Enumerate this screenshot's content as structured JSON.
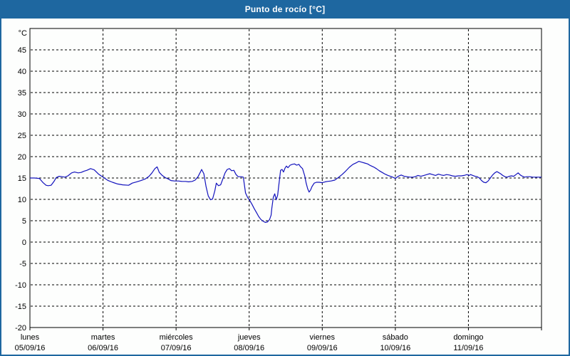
{
  "window": {
    "title": "Punto de rocío [°C]"
  },
  "colors": {
    "titlebar": "#1e67a0",
    "window_border": "#1e67a0",
    "plot_background": "#fdfefd",
    "frame": "#000000",
    "grid": "#000000",
    "text": "#000000",
    "series_line": "#1212bd"
  },
  "chart_data": {
    "type": "line",
    "title": "Punto de rocío [°C]",
    "y_unit_label": "°C",
    "ylabel": "",
    "xlabel": "",
    "ylim": [
      -20,
      50
    ],
    "y_ticks": [
      45,
      40,
      35,
      30,
      25,
      20,
      15,
      10,
      5,
      0,
      -5,
      -10,
      -15,
      -20
    ],
    "xlim_days": [
      0,
      7
    ],
    "grid": "dashed",
    "legend": "none",
    "x_day_labels": [
      {
        "day": "lunes",
        "date": "05/09/16"
      },
      {
        "day": "martes",
        "date": "06/09/16"
      },
      {
        "day": "miércoles",
        "date": "07/09/16"
      },
      {
        "day": "jueves",
        "date": "08/09/16"
      },
      {
        "day": "viernes",
        "date": "09/09/16"
      },
      {
        "day": "sábado",
        "date": "10/09/16"
      },
      {
        "day": "domingo",
        "date": "11/09/16"
      }
    ],
    "series": [
      {
        "name": "Punto de rocío",
        "color": "#1212bd",
        "points": [
          [
            0.0,
            15.0
          ],
          [
            0.06,
            15.0
          ],
          [
            0.13,
            14.9
          ],
          [
            0.18,
            13.9
          ],
          [
            0.22,
            13.3
          ],
          [
            0.25,
            13.2
          ],
          [
            0.29,
            13.3
          ],
          [
            0.33,
            14.2
          ],
          [
            0.36,
            15.1
          ],
          [
            0.4,
            15.4
          ],
          [
            0.44,
            15.3
          ],
          [
            0.48,
            15.2
          ],
          [
            0.52,
            15.5
          ],
          [
            0.57,
            16.2
          ],
          [
            0.61,
            16.4
          ],
          [
            0.66,
            16.2
          ],
          [
            0.7,
            16.3
          ],
          [
            0.74,
            16.6
          ],
          [
            0.78,
            16.8
          ],
          [
            0.83,
            17.2
          ],
          [
            0.88,
            16.9
          ],
          [
            0.94,
            15.9
          ],
          [
            1.0,
            15.2
          ],
          [
            1.07,
            14.4
          ],
          [
            1.13,
            14.0
          ],
          [
            1.2,
            13.6
          ],
          [
            1.27,
            13.4
          ],
          [
            1.35,
            13.3
          ],
          [
            1.4,
            13.8
          ],
          [
            1.46,
            14.1
          ],
          [
            1.52,
            14.4
          ],
          [
            1.58,
            14.8
          ],
          [
            1.63,
            15.4
          ],
          [
            1.67,
            16.2
          ],
          [
            1.71,
            17.2
          ],
          [
            1.74,
            17.6
          ],
          [
            1.77,
            16.3
          ],
          [
            1.81,
            15.6
          ],
          [
            1.85,
            15.1
          ],
          [
            1.89,
            14.8
          ],
          [
            1.93,
            14.4
          ],
          [
            1.98,
            14.3
          ],
          [
            2.03,
            14.3
          ],
          [
            2.08,
            14.2
          ],
          [
            2.13,
            14.2
          ],
          [
            2.17,
            14.1
          ],
          [
            2.22,
            14.2
          ],
          [
            2.26,
            14.5
          ],
          [
            2.3,
            15.3
          ],
          [
            2.33,
            16.3
          ],
          [
            2.35,
            17.0
          ],
          [
            2.38,
            16.0
          ],
          [
            2.41,
            13.0
          ],
          [
            2.44,
            10.8
          ],
          [
            2.47,
            9.9
          ],
          [
            2.5,
            10.1
          ],
          [
            2.53,
            12.0
          ],
          [
            2.55,
            13.8
          ],
          [
            2.58,
            13.2
          ],
          [
            2.61,
            13.4
          ],
          [
            2.64,
            14.8
          ],
          [
            2.67,
            16.2
          ],
          [
            2.7,
            17.0
          ],
          [
            2.73,
            17.2
          ],
          [
            2.76,
            16.7
          ],
          [
            2.79,
            16.8
          ],
          [
            2.82,
            15.8
          ],
          [
            2.85,
            15.3
          ],
          [
            2.89,
            15.3
          ],
          [
            2.92,
            15.2
          ],
          [
            2.95,
            11.5
          ],
          [
            2.98,
            10.4
          ],
          [
            3.01,
            9.7
          ],
          [
            3.04,
            8.8
          ],
          [
            3.07,
            7.8
          ],
          [
            3.1,
            6.9
          ],
          [
            3.13,
            6.0
          ],
          [
            3.16,
            5.3
          ],
          [
            3.19,
            4.9
          ],
          [
            3.22,
            4.6
          ],
          [
            3.25,
            4.7
          ],
          [
            3.28,
            5.3
          ],
          [
            3.3,
            6.3
          ],
          [
            3.31,
            7.9
          ],
          [
            3.33,
            10.5
          ],
          [
            3.35,
            11.3
          ],
          [
            3.37,
            9.9
          ],
          [
            3.39,
            11.0
          ],
          [
            3.41,
            14.0
          ],
          [
            3.43,
            16.8
          ],
          [
            3.45,
            17.0
          ],
          [
            3.47,
            16.4
          ],
          [
            3.49,
            17.3
          ],
          [
            3.51,
            17.8
          ],
          [
            3.53,
            17.4
          ],
          [
            3.56,
            18.0
          ],
          [
            3.59,
            18.2
          ],
          [
            3.62,
            18.3
          ],
          [
            3.65,
            18.0
          ],
          [
            3.68,
            18.2
          ],
          [
            3.7,
            17.7
          ],
          [
            3.73,
            17.2
          ],
          [
            3.76,
            15.5
          ],
          [
            3.78,
            13.8
          ],
          [
            3.8,
            12.5
          ],
          [
            3.82,
            11.7
          ],
          [
            3.84,
            12.2
          ],
          [
            3.86,
            13.0
          ],
          [
            3.89,
            13.8
          ],
          [
            3.92,
            14.0
          ],
          [
            3.96,
            14.0
          ],
          [
            4.0,
            13.9
          ],
          [
            4.04,
            14.1
          ],
          [
            4.07,
            14.2
          ],
          [
            4.12,
            14.3
          ],
          [
            4.17,
            14.5
          ],
          [
            4.22,
            15.1
          ],
          [
            4.27,
            15.8
          ],
          [
            4.32,
            16.6
          ],
          [
            4.37,
            17.5
          ],
          [
            4.42,
            18.2
          ],
          [
            4.47,
            18.6
          ],
          [
            4.5,
            18.9
          ],
          [
            4.54,
            18.7
          ],
          [
            4.58,
            18.5
          ],
          [
            4.62,
            18.3
          ],
          [
            4.66,
            17.9
          ],
          [
            4.7,
            17.6
          ],
          [
            4.74,
            17.2
          ],
          [
            4.78,
            16.7
          ],
          [
            4.82,
            16.3
          ],
          [
            4.86,
            15.9
          ],
          [
            4.9,
            15.6
          ],
          [
            4.95,
            15.3
          ],
          [
            5.0,
            14.9
          ],
          [
            5.04,
            15.4
          ],
          [
            5.08,
            15.7
          ],
          [
            5.12,
            15.4
          ],
          [
            5.16,
            15.3
          ],
          [
            5.2,
            15.2
          ],
          [
            5.24,
            15.2
          ],
          [
            5.27,
            15.3
          ],
          [
            5.31,
            15.6
          ],
          [
            5.35,
            15.4
          ],
          [
            5.39,
            15.6
          ],
          [
            5.43,
            15.8
          ],
          [
            5.47,
            16.0
          ],
          [
            5.51,
            15.8
          ],
          [
            5.55,
            15.6
          ],
          [
            5.59,
            15.9
          ],
          [
            5.63,
            15.7
          ],
          [
            5.66,
            15.6
          ],
          [
            5.7,
            15.8
          ],
          [
            5.74,
            15.7
          ],
          [
            5.78,
            15.5
          ],
          [
            5.82,
            15.4
          ],
          [
            5.86,
            15.5
          ],
          [
            5.9,
            15.5
          ],
          [
            5.94,
            15.6
          ],
          [
            5.98,
            15.8
          ],
          [
            6.01,
            15.6
          ],
          [
            6.03,
            15.8
          ],
          [
            6.06,
            15.6
          ],
          [
            6.09,
            15.4
          ],
          [
            6.12,
            15.3
          ],
          [
            6.15,
            15.0
          ],
          [
            6.18,
            14.4
          ],
          [
            6.21,
            14.0
          ],
          [
            6.24,
            13.9
          ],
          [
            6.27,
            14.3
          ],
          [
            6.3,
            15.0
          ],
          [
            6.33,
            15.7
          ],
          [
            6.36,
            16.2
          ],
          [
            6.39,
            16.5
          ],
          [
            6.41,
            16.3
          ],
          [
            6.44,
            16.0
          ],
          [
            6.47,
            15.6
          ],
          [
            6.5,
            15.3
          ],
          [
            6.53,
            15.2
          ],
          [
            6.56,
            15.4
          ],
          [
            6.59,
            15.5
          ],
          [
            6.62,
            15.4
          ],
          [
            6.65,
            15.8
          ],
          [
            6.68,
            16.2
          ],
          [
            6.71,
            15.7
          ],
          [
            6.74,
            15.4
          ],
          [
            6.77,
            15.2
          ],
          [
            6.8,
            15.3
          ],
          [
            6.84,
            15.3
          ],
          [
            6.88,
            15.2
          ],
          [
            6.92,
            15.2
          ],
          [
            6.96,
            15.2
          ],
          [
            7.0,
            15.2
          ]
        ]
      }
    ]
  }
}
